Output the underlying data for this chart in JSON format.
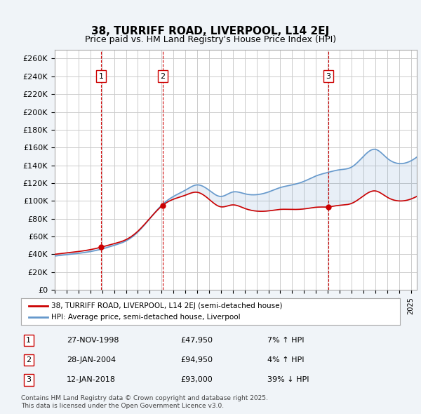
{
  "title": "38, TURRIFF ROAD, LIVERPOOL, L14 2EJ",
  "subtitle": "Price paid vs. HM Land Registry's House Price Index (HPI)",
  "ylabel_ticks": [
    0,
    20000,
    40000,
    60000,
    80000,
    100000,
    120000,
    140000,
    160000,
    180000,
    200000,
    220000,
    240000,
    260000
  ],
  "ylim": [
    0,
    270000
  ],
  "xlim_start": 1995.0,
  "xlim_end": 2025.5,
  "sales": [
    {
      "num": 1,
      "date_str": "27-NOV-1998",
      "date_x": 1998.9,
      "price": 47950,
      "label": "27-NOV-1998",
      "price_label": "£47,950",
      "hpi_pct": "7% ↑ HPI"
    },
    {
      "num": 2,
      "date_str": "28-JAN-2004",
      "date_x": 2004.08,
      "price": 94950,
      "label": "28-JAN-2004",
      "price_label": "£94,950",
      "hpi_pct": "4% ↑ HPI"
    },
    {
      "num": 3,
      "date_str": "12-JAN-2018",
      "date_x": 2018.04,
      "price": 93000,
      "label": "12-JAN-2018",
      "price_label": "£93,000",
      "hpi_pct": "39% ↓ HPI"
    }
  ],
  "legend_entries": [
    "38, TURRIFF ROAD, LIVERPOOL, L14 2EJ (semi-detached house)",
    "HPI: Average price, semi-detached house, Liverpool"
  ],
  "footer": "Contains HM Land Registry data © Crown copyright and database right 2025.\nThis data is licensed under the Open Government Licence v3.0.",
  "line_color_red": "#cc0000",
  "line_color_blue": "#6699cc",
  "background_color": "#f0f4f8",
  "plot_bg": "#ffffff",
  "grid_color": "#cccccc",
  "sale_marker_box_color": "#cc0000",
  "vline_color": "#cc0000"
}
